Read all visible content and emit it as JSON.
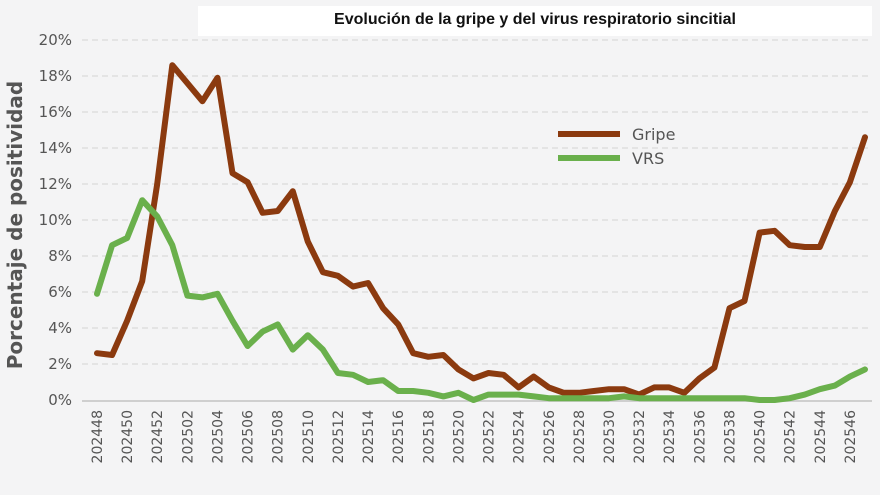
{
  "chart_data": {
    "type": "line",
    "title": "Evolución de la gripe y del virus respiratorio sincitial",
    "xlabel": "",
    "ylabel": "Porcentaje de positividad",
    "ylim": [
      0,
      20
    ],
    "yticks": [
      "0%",
      "2%",
      "4%",
      "6%",
      "8%",
      "10%",
      "12%",
      "14%",
      "16%",
      "18%",
      "20%"
    ],
    "grid": true,
    "legend_position": "upper-right",
    "x": [
      "202448",
      "202449",
      "202450",
      "202451",
      "202452",
      "202501",
      "202502",
      "202503",
      "202504",
      "202505",
      "202506",
      "202507",
      "202508",
      "202509",
      "202510",
      "202511",
      "202512",
      "202513",
      "202514",
      "202515",
      "202516",
      "202517",
      "202518",
      "202519",
      "202520",
      "202521",
      "202522",
      "202523",
      "202524",
      "202525",
      "202526",
      "202527",
      "202528",
      "202529",
      "202530",
      "202531",
      "202532",
      "202533",
      "202534",
      "202535",
      "202536",
      "202537",
      "202538",
      "202539",
      "202540",
      "202541",
      "202542",
      "202543",
      "202544",
      "202545",
      "202546",
      "202547"
    ],
    "xtick_labels": [
      "202448",
      "202450",
      "202452",
      "202502",
      "202504",
      "202506",
      "202508",
      "202510",
      "202512",
      "202514",
      "202516",
      "202518",
      "202520",
      "202522",
      "202524",
      "202526",
      "202528",
      "202530",
      "202532",
      "202534",
      "202536",
      "202538",
      "202540",
      "202542",
      "202544",
      "202546"
    ],
    "series": [
      {
        "name": "Gripe",
        "color": "#8b3a0f",
        "values": [
          2.6,
          2.5,
          4.4,
          6.6,
          12,
          18.6,
          17.6,
          16.6,
          17.9,
          12.6,
          12.1,
          10.4,
          10.5,
          11.6,
          8.8,
          7.1,
          6.9,
          6.3,
          6.5,
          5.1,
          4.2,
          2.6,
          2.4,
          2.5,
          1.7,
          1.2,
          1.5,
          1.4,
          0.7,
          1.3,
          0.7,
          0.4,
          0.4,
          0.5,
          0.6,
          0.6,
          0.3,
          0.7,
          0.7,
          0.4,
          1.2,
          1.8,
          5.1,
          5.5,
          9.3,
          9.4,
          8.6,
          8.5,
          8.5,
          10.5,
          12.1,
          14.6
        ]
      },
      {
        "name": "VRS",
        "color": "#6ab04c",
        "values": [
          5.9,
          8.6,
          9.0,
          11.1,
          10.2,
          8.6,
          5.8,
          5.7,
          5.9,
          4.4,
          3.0,
          3.8,
          4.2,
          2.8,
          3.6,
          2.8,
          1.5,
          1.4,
          1.0,
          1.1,
          0.5,
          0.5,
          0.4,
          0.2,
          0.4,
          0.0,
          0.3,
          0.3,
          0.3,
          0.2,
          0.1,
          0.1,
          0.1,
          0.1,
          0.1,
          0.2,
          0.1,
          0.1,
          0.1,
          0.1,
          0.1,
          0.1,
          0.1,
          0.1,
          0.0,
          0.0,
          0.1,
          0.3,
          0.6,
          0.8,
          1.3,
          1.7
        ]
      }
    ]
  }
}
